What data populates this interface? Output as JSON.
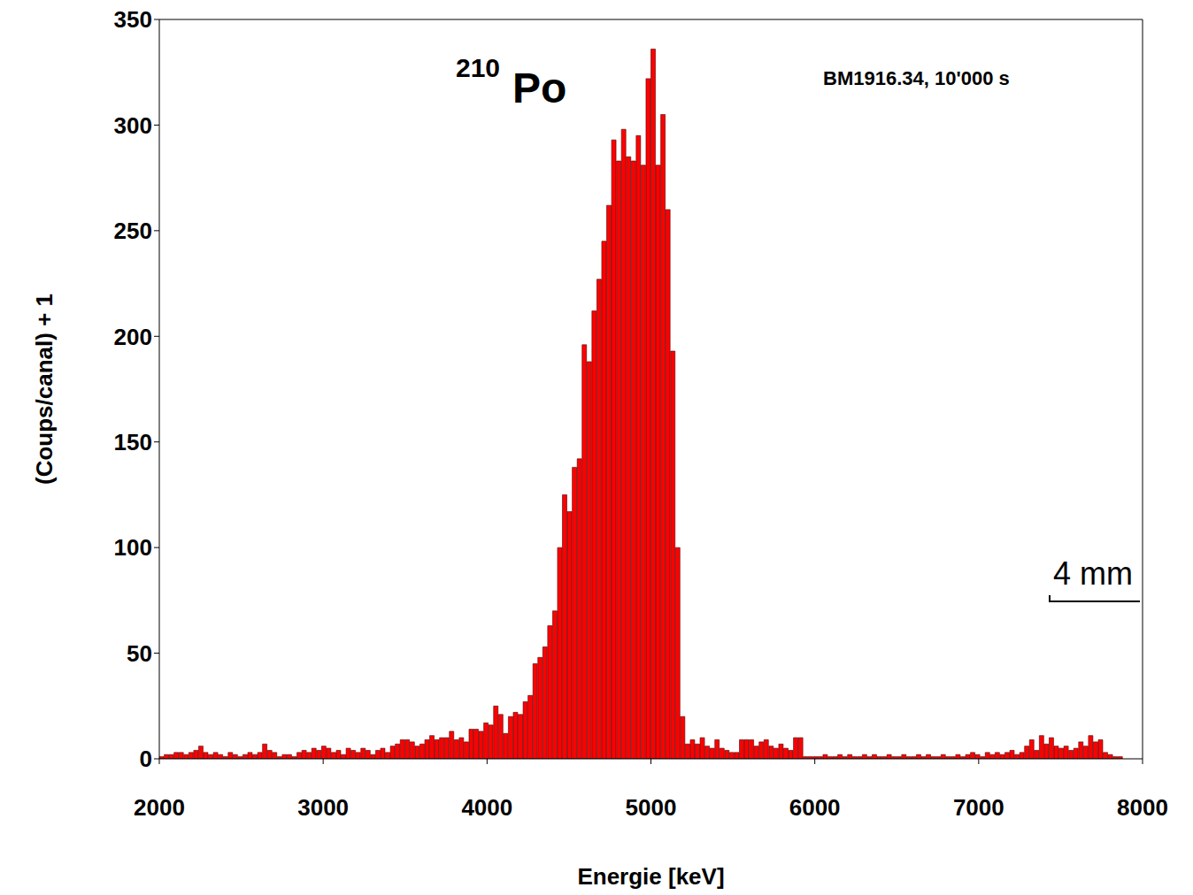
{
  "chart_data": {
    "type": "histogram",
    "title": "210Po",
    "annotations": [
      "BM1916.34, 10'000 s",
      "4 mm"
    ],
    "xlabel": "Energie [keV]",
    "ylabel": "(Coups/canal) + 1",
    "bins": [
      2000,
      2030,
      2060,
      2090,
      2120,
      2150,
      2180,
      2210,
      2240,
      2270,
      2300,
      2330,
      2360,
      2390,
      2420,
      2450,
      2480,
      2510,
      2540,
      2570,
      2600,
      2630,
      2660,
      2690,
      2720,
      2750,
      2780,
      2810,
      2840,
      2870,
      2900,
      2930,
      2960,
      2990,
      3020,
      3050,
      3080,
      3110,
      3140,
      3170,
      3200,
      3230,
      3260,
      3290,
      3320,
      3350,
      3380,
      3410,
      3440,
      3470,
      3500,
      3530,
      3560,
      3590,
      3620,
      3650,
      3680,
      3710,
      3740,
      3770,
      3800,
      3830,
      3860,
      3890,
      3920,
      3950,
      3980,
      4010,
      4040,
      4070,
      4100,
      4130,
      4160,
      4190,
      4220,
      4250,
      4280,
      4310,
      4340,
      4370,
      4400,
      4430,
      4460,
      4490,
      4520,
      4550,
      4580,
      4610,
      4640,
      4670,
      4700,
      4730,
      4760,
      4790,
      4820,
      4850,
      4880,
      4910,
      4940,
      4970,
      5000,
      5030,
      5060,
      5090,
      5120,
      5150,
      5180,
      5210,
      5240,
      5270,
      5300,
      5330,
      5360,
      5390,
      5420,
      5450,
      5480,
      5510,
      5540,
      5570,
      5600,
      5630,
      5660,
      5690,
      5720,
      5750,
      5780,
      5810,
      5840,
      5870,
      5900,
      5930,
      5960,
      5990,
      6020,
      6050,
      6080,
      6110,
      6140,
      6170,
      6200,
      6230,
      6260,
      6290,
      6320,
      6350,
      6380,
      6410,
      6440,
      6470,
      6500,
      6530,
      6560,
      6590,
      6620,
      6650,
      6680,
      6710,
      6740,
      6770,
      6800,
      6830,
      6860,
      6890,
      6920,
      6950,
      6980,
      7010,
      7040,
      7070,
      7100,
      7130,
      7160,
      7190,
      7220,
      7250,
      7280,
      7310,
      7340,
      7370,
      7400,
      7430,
      7460,
      7490,
      7520,
      7550,
      7580,
      7610,
      7640,
      7670,
      7700,
      7730,
      7760,
      7790,
      7820,
      7850,
      7880
    ],
    "counts": [
      1,
      2,
      2,
      3,
      3,
      2,
      3,
      4,
      6,
      3,
      2,
      3,
      2,
      1,
      3,
      2,
      1,
      2,
      3,
      2,
      3,
      7,
      4,
      3,
      1,
      2,
      2,
      1,
      3,
      4,
      3,
      5,
      4,
      6,
      5,
      3,
      4,
      2,
      5,
      4,
      3,
      5,
      4,
      2,
      4,
      5,
      3,
      6,
      7,
      9,
      9,
      8,
      6,
      7,
      9,
      11,
      9,
      10,
      10,
      13,
      9,
      10,
      8,
      14,
      14,
      13,
      17,
      16,
      25,
      21,
      12,
      20,
      22,
      21,
      27,
      30,
      45,
      48,
      53,
      63,
      70,
      100,
      125,
      117,
      138,
      142,
      196,
      188,
      212,
      227,
      245,
      262,
      293,
      283,
      298,
      285,
      283,
      295,
      281,
      322,
      336,
      281,
      305,
      260,
      193,
      100,
      20,
      7,
      9,
      7,
      10,
      6,
      5,
      9,
      5,
      4,
      3,
      3,
      9,
      9,
      9,
      6,
      8,
      9,
      6,
      5,
      7,
      5,
      4,
      10,
      10,
      1,
      1,
      1,
      1,
      2,
      1,
      1,
      2,
      1,
      2,
      1,
      1,
      2,
      1,
      2,
      1,
      1,
      2,
      1,
      1,
      2,
      1,
      1,
      2,
      1,
      2,
      1,
      1,
      2,
      1,
      1,
      2,
      1,
      2,
      3,
      2,
      1,
      3,
      2,
      3,
      2,
      3,
      4,
      2,
      3,
      6,
      9,
      4,
      11,
      7,
      10,
      6,
      5,
      6,
      4,
      5,
      8,
      6,
      11,
      8,
      9,
      3,
      2,
      1,
      1
    ],
    "color": "#ff0000",
    "xlim": [
      2000,
      8000
    ],
    "xticks": [
      2000,
      3000,
      4000,
      5000,
      6000,
      7000,
      8000
    ],
    "ylim": [
      0,
      350
    ],
    "yticks": [
      0,
      50,
      100,
      150,
      200,
      250,
      300,
      350
    ],
    "grid": false
  }
}
